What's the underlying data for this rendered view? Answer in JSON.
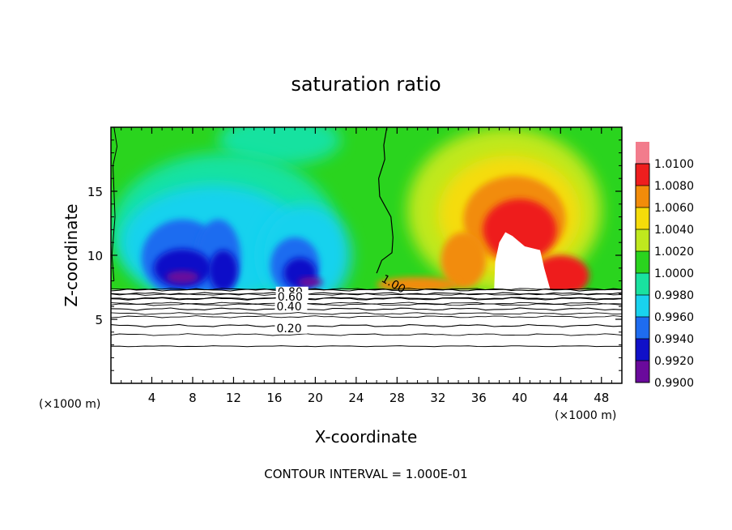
{
  "chart_data": {
    "type": "heatmap",
    "title": "saturation ratio",
    "xlabel": "X-coordinate",
    "ylabel": "Z-coordinate",
    "x_unit": "(×1000 m)",
    "x_unit_right": "(×1000 m)",
    "xlim": [
      0,
      50
    ],
    "ylim": [
      0,
      20
    ],
    "x_ticks": [
      4,
      8,
      12,
      16,
      20,
      24,
      28,
      32,
      36,
      40,
      44,
      48
    ],
    "y_ticks": [
      5,
      10,
      15
    ],
    "colorbar": {
      "levels": [
        "0.9900",
        "0.9920",
        "0.9940",
        "0.9960",
        "0.9980",
        "1.0000",
        "1.0020",
        "1.0040",
        "1.0060",
        "1.0080",
        "1.0100"
      ],
      "colors": [
        "#6a0a9c",
        "#1010c8",
        "#1e6cf0",
        "#19d2ee",
        "#19e2a0",
        "#2ad41e",
        "#bfe81e",
        "#f5dc0a",
        "#f28c0a",
        "#ee1e1e",
        "#f27c8c"
      ]
    },
    "lower_contours": [
      {
        "label": "0.20",
        "z": 4.5
      },
      {
        "label": "0.40",
        "z": 5.8
      },
      {
        "label": "0.60",
        "z": 6.6
      },
      {
        "label": "0.80",
        "z": 7.0
      },
      {
        "label": "1.00",
        "z": 7.3
      }
    ],
    "cloud_top_z": 7.3,
    "footer": "CONTOUR INTERVAL = 1.000E-01"
  }
}
